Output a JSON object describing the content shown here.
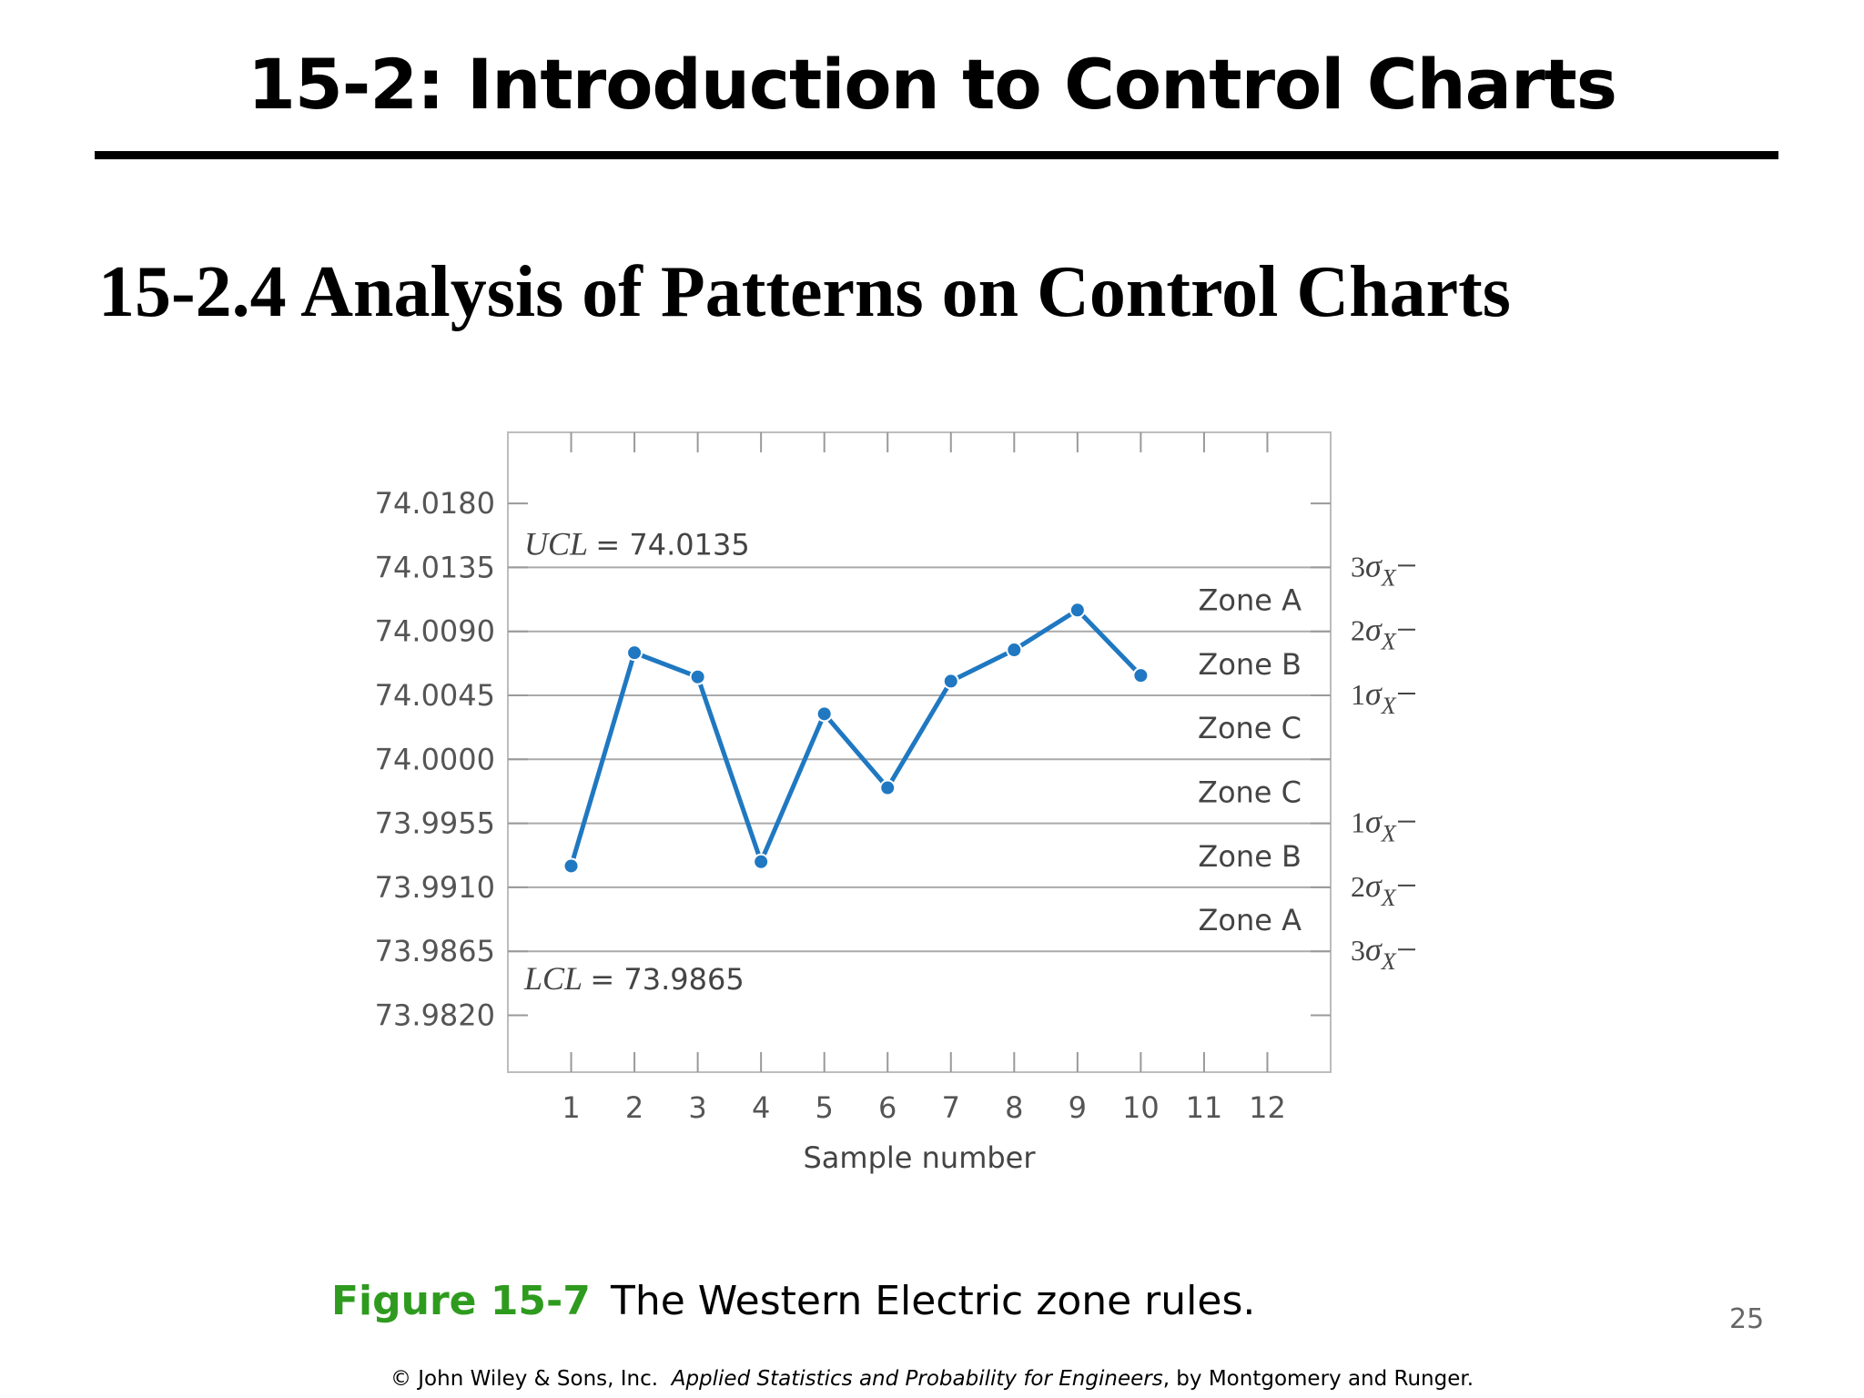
{
  "slide": {
    "title": "15-2: Introduction to Control Charts",
    "section_heading": "15-2.4 Analysis of Patterns on Control Charts",
    "caption_figure": "Figure 15-7",
    "caption_text": "The Western Electric zone rules.",
    "page_number": "25",
    "footer_prefix": "© John Wiley & Sons, Inc.",
    "footer_book": "Applied Statistics and Probability for Engineers",
    "footer_suffix": ", by Montgomery and Runger."
  },
  "chart_data": {
    "type": "line",
    "title": "",
    "xlabel": "Sample number",
    "ylabel": "",
    "x": [
      1,
      2,
      3,
      4,
      5,
      6,
      7,
      8,
      9,
      10
    ],
    "values": [
      73.9925,
      74.0075,
      74.0058,
      73.9928,
      74.0032,
      73.998,
      74.0055,
      74.0077,
      74.0105,
      74.0059
    ],
    "xlim": [
      0,
      13
    ],
    "ylim": [
      73.978,
      74.023
    ],
    "x_ticks": [
      1,
      2,
      3,
      4,
      5,
      6,
      7,
      8,
      9,
      10,
      11,
      12
    ],
    "x_tick_labels": [
      "1",
      "2",
      "3",
      "4",
      "5",
      "6",
      "7",
      "8",
      "9",
      "10",
      "11",
      "12"
    ],
    "y_ticks": [
      74.018,
      74.0135,
      74.009,
      74.0045,
      74.0,
      73.9955,
      73.991,
      73.9865,
      73.982
    ],
    "y_tick_labels": [
      "74.0180",
      "74.0135",
      "74.0090",
      "74.0045",
      "74.0000",
      "73.9955",
      "73.9910",
      "73.9865",
      "73.9820"
    ],
    "zone_lines": [
      74.0135,
      74.009,
      74.0045,
      74.0,
      73.9955,
      73.991,
      73.9865
    ],
    "ucl": {
      "label": "UCL",
      "value_text": "= 74.0135",
      "value": 74.0135
    },
    "lcl": {
      "label": "LCL",
      "value_text": "= 73.9865",
      "value": 73.9865
    },
    "zones": [
      {
        "label": "Zone A",
        "y": 74.01125
      },
      {
        "label": "Zone B",
        "y": 74.00675
      },
      {
        "label": "Zone C",
        "y": 74.00225
      },
      {
        "label": "Zone C",
        "y": 73.99775
      },
      {
        "label": "Zone B",
        "y": 73.99325
      },
      {
        "label": "Zone A",
        "y": 73.98875
      }
    ],
    "sigma_labels": [
      {
        "k": "3",
        "y": 74.0135
      },
      {
        "k": "2",
        "y": 74.009
      },
      {
        "k": "1",
        "y": 74.0045
      },
      {
        "k": "1",
        "y": 73.9955
      },
      {
        "k": "2",
        "y": 73.991
      },
      {
        "k": "3",
        "y": 73.9865
      }
    ],
    "grid": false,
    "line_color": "#1f78c1",
    "zone_line_color": "#aaaaaa"
  }
}
